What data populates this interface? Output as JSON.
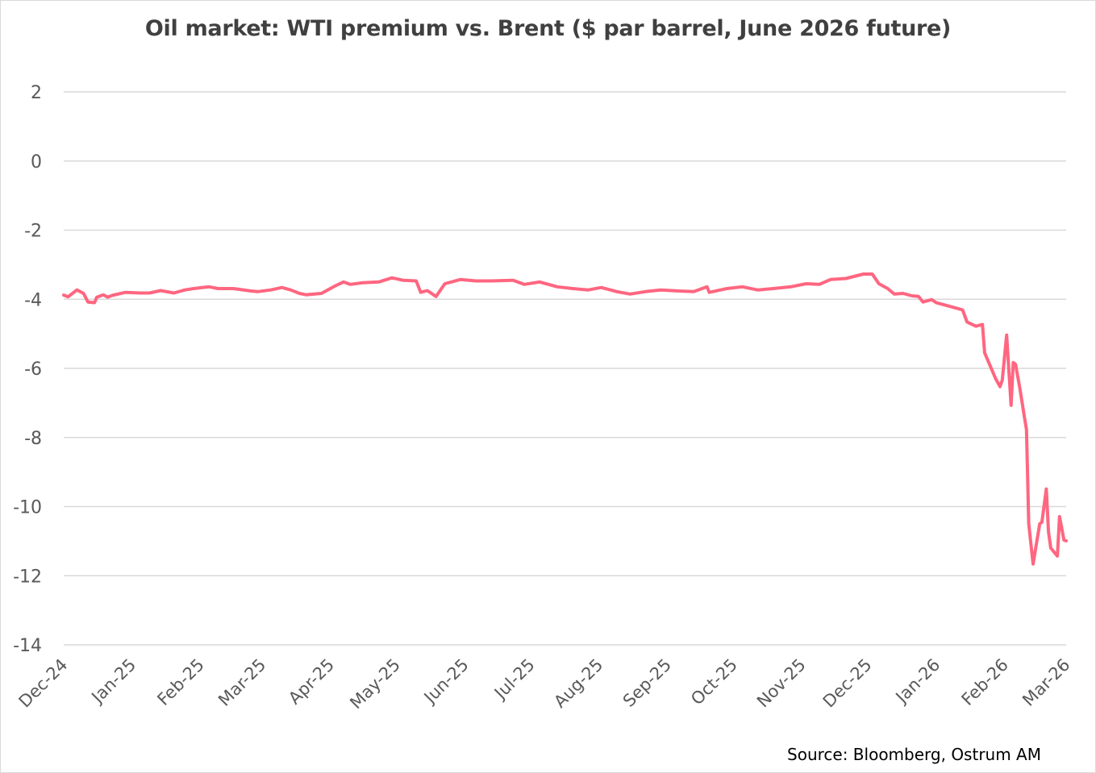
{
  "chart_data": {
    "type": "line",
    "title": "Oil market: WTI premium vs. Brent ($ par barrel, June 2026 future)",
    "source": "Source: Bloomberg, Ostrum AM",
    "xlabel": "",
    "ylabel": "",
    "ylim": [
      -14,
      2
    ],
    "yticks": [
      2,
      0,
      -2,
      -4,
      -6,
      -8,
      -10,
      -12,
      -14
    ],
    "xlim": [
      "2024-12-01",
      "2026-03-01"
    ],
    "xticks": [
      {
        "date": "2024-12-01",
        "label": "Dec-24"
      },
      {
        "date": "2025-01-01",
        "label": "Jan-25"
      },
      {
        "date": "2025-02-01",
        "label": "Feb-25"
      },
      {
        "date": "2025-03-01",
        "label": "Mar-25"
      },
      {
        "date": "2025-04-01",
        "label": "Apr-25"
      },
      {
        "date": "2025-05-01",
        "label": "May-25"
      },
      {
        "date": "2025-06-01",
        "label": "Jun-25"
      },
      {
        "date": "2025-07-01",
        "label": "Jul-25"
      },
      {
        "date": "2025-08-01",
        "label": "Aug-25"
      },
      {
        "date": "2025-09-01",
        "label": "Sep-25"
      },
      {
        "date": "2025-10-01",
        "label": "Oct-25"
      },
      {
        "date": "2025-11-01",
        "label": "Nov-25"
      },
      {
        "date": "2025-12-01",
        "label": "Dec-25"
      },
      {
        "date": "2026-01-01",
        "label": "Jan-26"
      },
      {
        "date": "2026-02-01",
        "label": "Feb-26"
      },
      {
        "date": "2026-03-01",
        "label": "Mar-26"
      }
    ],
    "grid": true,
    "legend": "none",
    "line_color": "#ff6680",
    "series": [
      {
        "x": [
          "2024-12-01",
          "2024-12-03",
          "2024-12-07",
          "2024-12-10",
          "2024-12-12",
          "2024-12-15",
          "2024-12-16",
          "2024-12-19",
          "2024-12-21",
          "2024-12-23",
          "2024-12-29",
          "2025-01-05",
          "2025-01-09",
          "2025-01-14",
          "2025-01-20",
          "2025-01-25",
          "2025-01-29",
          "2025-02-05",
          "2025-02-09",
          "2025-02-16",
          "2025-02-24",
          "2025-02-27",
          "2025-03-05",
          "2025-03-10",
          "2025-03-14",
          "2025-03-18",
          "2025-03-21",
          "2025-03-28",
          "2025-04-03",
          "2025-04-07",
          "2025-04-10",
          "2025-04-16",
          "2025-04-23",
          "2025-04-29",
          "2025-05-04",
          "2025-05-10",
          "2025-05-12",
          "2025-05-15",
          "2025-05-19",
          "2025-05-23",
          "2025-05-30",
          "2025-06-06",
          "2025-06-13",
          "2025-06-23",
          "2025-06-28",
          "2025-07-05",
          "2025-07-13",
          "2025-07-20",
          "2025-07-27",
          "2025-08-02",
          "2025-08-09",
          "2025-08-15",
          "2025-08-22",
          "2025-08-29",
          "2025-09-06",
          "2025-09-13",
          "2025-09-19",
          "2025-09-20",
          "2025-09-28",
          "2025-10-05",
          "2025-10-12",
          "2025-10-19",
          "2025-10-27",
          "2025-11-03",
          "2025-11-09",
          "2025-11-14",
          "2025-11-21",
          "2025-11-29",
          "2025-12-03",
          "2025-12-06",
          "2025-12-10",
          "2025-12-13",
          "2025-12-17",
          "2025-12-21",
          "2025-12-24",
          "2025-12-26",
          "2025-12-30",
          "2026-01-01",
          "2026-01-04",
          "2026-01-08",
          "2026-01-13",
          "2026-01-15",
          "2026-01-19",
          "2026-01-22",
          "2026-01-23",
          "2026-01-28",
          "2026-01-30",
          "2026-01-31",
          "2026-02-02",
          "2026-02-04",
          "2026-02-05",
          "2026-02-06",
          "2026-02-08",
          "2026-02-10",
          "2026-02-11",
          "2026-02-12",
          "2026-02-14",
          "2026-02-17",
          "2026-02-18",
          "2026-02-20",
          "2026-02-21",
          "2026-02-22",
          "2026-02-25",
          "2026-02-26",
          "2026-02-28",
          "2026-03-01"
        ],
        "y": [
          -3.88,
          -3.93,
          -3.73,
          -3.83,
          -4.08,
          -4.1,
          -3.94,
          -3.87,
          -3.94,
          -3.89,
          -3.8,
          -3.82,
          -3.82,
          -3.75,
          -3.82,
          -3.73,
          -3.69,
          -3.64,
          -3.69,
          -3.69,
          -3.76,
          -3.78,
          -3.73,
          -3.66,
          -3.73,
          -3.83,
          -3.87,
          -3.83,
          -3.62,
          -3.5,
          -3.57,
          -3.52,
          -3.5,
          -3.38,
          -3.45,
          -3.47,
          -3.8,
          -3.75,
          -3.92,
          -3.55,
          -3.43,
          -3.47,
          -3.47,
          -3.45,
          -3.57,
          -3.5,
          -3.64,
          -3.69,
          -3.73,
          -3.66,
          -3.78,
          -3.85,
          -3.78,
          -3.73,
          -3.76,
          -3.78,
          -3.64,
          -3.8,
          -3.69,
          -3.64,
          -3.73,
          -3.69,
          -3.64,
          -3.55,
          -3.57,
          -3.43,
          -3.4,
          -3.27,
          -3.27,
          -3.55,
          -3.69,
          -3.85,
          -3.83,
          -3.9,
          -3.92,
          -4.08,
          -4.01,
          -4.1,
          -4.15,
          -4.22,
          -4.31,
          -4.66,
          -4.78,
          -4.73,
          -5.55,
          -6.3,
          -6.53,
          -6.34,
          -5.04,
          -7.07,
          -5.83,
          -5.88,
          -6.58,
          -7.39,
          -7.77,
          -10.5,
          -11.66,
          -10.5,
          -10.45,
          -9.49,
          -10.73,
          -11.2,
          -11.43,
          -10.29,
          -10.97,
          -10.99
        ]
      }
    ]
  }
}
